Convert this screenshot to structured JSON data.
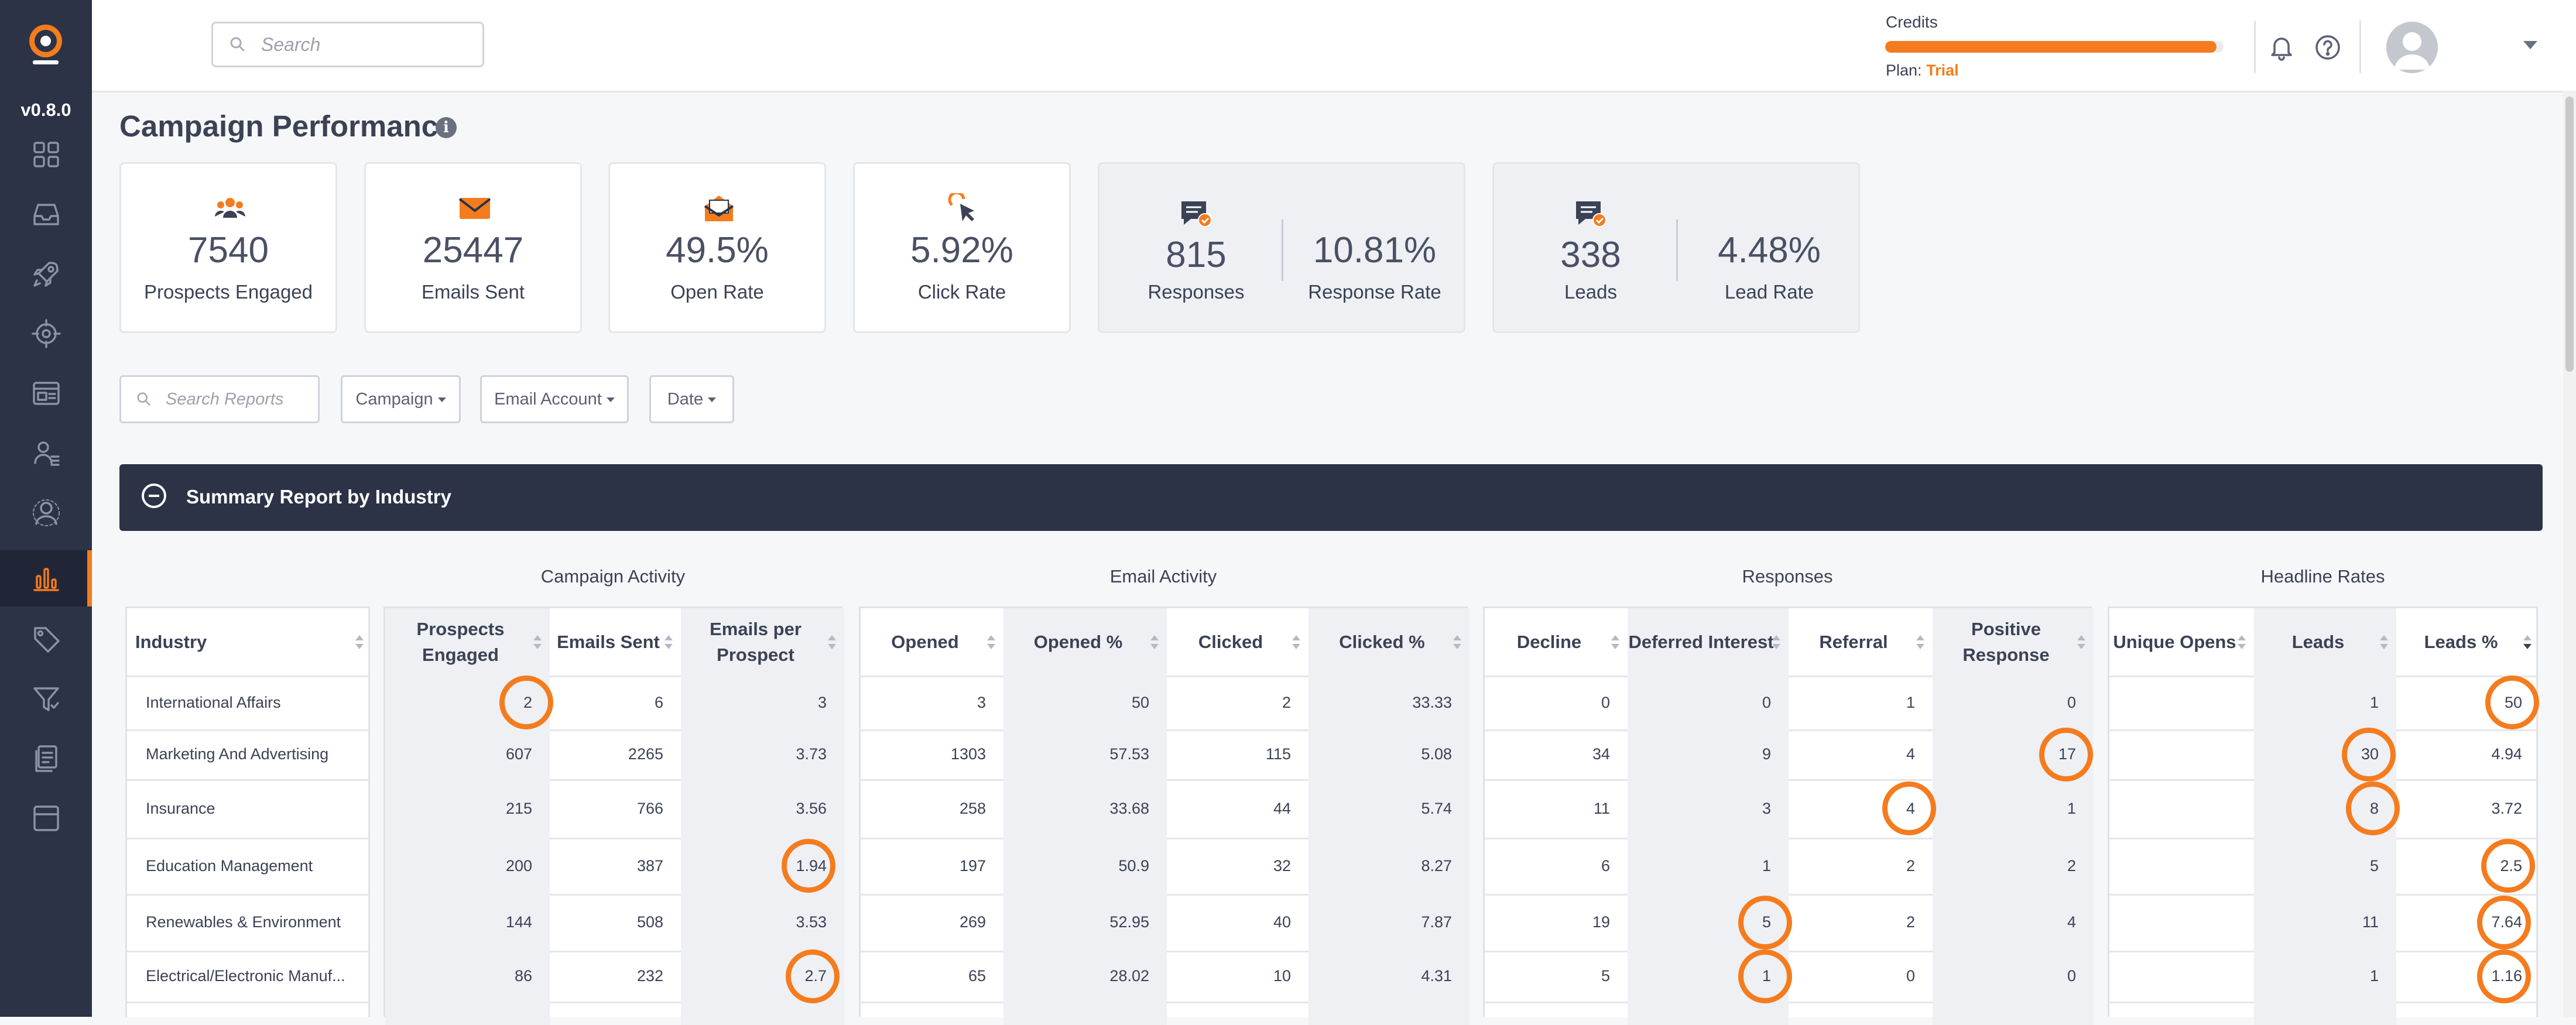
{
  "app": {
    "version": "v0.8.0",
    "brand_color": "#f47c1e",
    "sidebar_color": "#2c3346"
  },
  "sidebar": {
    "items": [
      {
        "icon": "dashboard-icon"
      },
      {
        "icon": "inbox-icon"
      },
      {
        "icon": "rocket-icon"
      },
      {
        "icon": "target-icon"
      },
      {
        "icon": "browser-window-icon"
      },
      {
        "icon": "contacts-icon"
      },
      {
        "icon": "user-circle-icon"
      },
      {
        "icon": "bar-chart-icon",
        "active": true
      },
      {
        "icon": "tag-icon"
      },
      {
        "icon": "filter-icon"
      },
      {
        "icon": "documents-icon"
      },
      {
        "icon": "layout-icon"
      }
    ]
  },
  "topbar": {
    "search_placeholder": "Search",
    "credits_label": "Credits",
    "credits_fill_fraction": 0.98,
    "plan_label": "Plan:",
    "plan_value": "Trial",
    "bell_icon": "bell-icon",
    "help_icon": "help-icon",
    "avatar_icon": "user-avatar-icon"
  },
  "page": {
    "title": "Campaign Performance"
  },
  "stats": [
    {
      "value": "7540",
      "label": "Prospects Engaged",
      "icon": "users-icon"
    },
    {
      "value": "25447",
      "label": "Emails Sent",
      "icon": "envelope-icon"
    },
    {
      "value": "49.5%",
      "label": "Open Rate",
      "icon": "open-envelope-icon"
    },
    {
      "value": "5.92%",
      "label": "Click Rate",
      "icon": "cursor-click-icon"
    }
  ],
  "stat_pairs": [
    {
      "icon": "chat-check-icon",
      "left_value": "815",
      "left_label": "Responses",
      "right_value": "10.81%",
      "right_label": "Response Rate"
    },
    {
      "icon": "chat-check-icon",
      "left_value": "338",
      "left_label": "Leads",
      "right_value": "4.48%",
      "right_label": "Lead Rate"
    }
  ],
  "filters": {
    "search_placeholder": "Search Reports",
    "campaign": "Campaign",
    "email_account": "Email Account",
    "date": "Date"
  },
  "summary": {
    "title": "Summary Report by Industry"
  },
  "groups": {
    "campaign_activity": "Campaign Activity",
    "email_activity": "Email Activity",
    "responses": "Responses",
    "headline_rates": "Headline Rates"
  },
  "headers": {
    "industry": "Industry",
    "prospects_engaged": "Prospects Engaged",
    "emails_sent": "Emails Sent",
    "emails_per_prospect": "Emails per Prospect",
    "opened": "Opened",
    "opened_pct": "Opened %",
    "clicked": "Clicked",
    "clicked_pct": "Clicked %",
    "decline": "Decline",
    "deferred_interest": "Deferred Interest",
    "referral": "Referral",
    "positive_response": "Positive Response",
    "unique_opens": "Unique Opens",
    "leads": "Leads",
    "leads_pct": "Leads %"
  },
  "rows": [
    {
      "industry": "International Affairs",
      "ca": [
        "2",
        "6",
        "3"
      ],
      "ea": [
        "3",
        "50",
        "2",
        "33.33"
      ],
      "rs": [
        "0",
        "0",
        "1",
        "0"
      ],
      "hr": [
        "",
        "1",
        "50"
      ]
    },
    {
      "industry": "Marketing And Advertising",
      "ca": [
        "607",
        "2265",
        "3.73"
      ],
      "ea": [
        "1303",
        "57.53",
        "115",
        "5.08"
      ],
      "rs": [
        "34",
        "9",
        "4",
        "17"
      ],
      "hr": [
        "",
        "30",
        "4.94"
      ]
    },
    {
      "industry": "Insurance",
      "ca": [
        "215",
        "766",
        "3.56"
      ],
      "ea": [
        "258",
        "33.68",
        "44",
        "5.74"
      ],
      "rs": [
        "11",
        "3",
        "4",
        "1"
      ],
      "hr": [
        "",
        "8",
        "3.72"
      ]
    },
    {
      "industry": "Education Management",
      "ca": [
        "200",
        "387",
        "1.94"
      ],
      "ea": [
        "197",
        "50.9",
        "32",
        "8.27"
      ],
      "rs": [
        "6",
        "1",
        "2",
        "2"
      ],
      "hr": [
        "",
        "5",
        "2.5"
      ]
    },
    {
      "industry": "Renewables & Environment",
      "ca": [
        "144",
        "508",
        "3.53"
      ],
      "ea": [
        "269",
        "52.95",
        "40",
        "7.87"
      ],
      "rs": [
        "19",
        "5",
        "2",
        "4"
      ],
      "hr": [
        "",
        "11",
        "7.64"
      ]
    },
    {
      "industry": "Electrical/Electronic Manuf...",
      "ca": [
        "86",
        "232",
        "2.7"
      ],
      "ea": [
        "65",
        "28.02",
        "10",
        "4.31"
      ],
      "rs": [
        "5",
        "1",
        "0",
        "0"
      ],
      "hr": [
        "",
        "1",
        "1.16"
      ]
    }
  ],
  "highlights": [
    {
      "row": 0,
      "group": "ca",
      "col": 0
    },
    {
      "row": 0,
      "group": "hr",
      "col": 2
    },
    {
      "row": 1,
      "group": "rs",
      "col": 3
    },
    {
      "row": 1,
      "group": "hr",
      "col": 1
    },
    {
      "row": 2,
      "group": "rs",
      "col": 2
    },
    {
      "row": 2,
      "group": "hr",
      "col": 1
    },
    {
      "row": 3,
      "group": "ca",
      "col": 2
    },
    {
      "row": 3,
      "group": "hr",
      "col": 2
    },
    {
      "row": 4,
      "group": "rs",
      "col": 1
    },
    {
      "row": 4,
      "group": "hr",
      "col": 2
    },
    {
      "row": 5,
      "group": "ca",
      "col": 2
    },
    {
      "row": 5,
      "group": "rs",
      "col": 1
    },
    {
      "row": 5,
      "group": "hr",
      "col": 2
    }
  ]
}
